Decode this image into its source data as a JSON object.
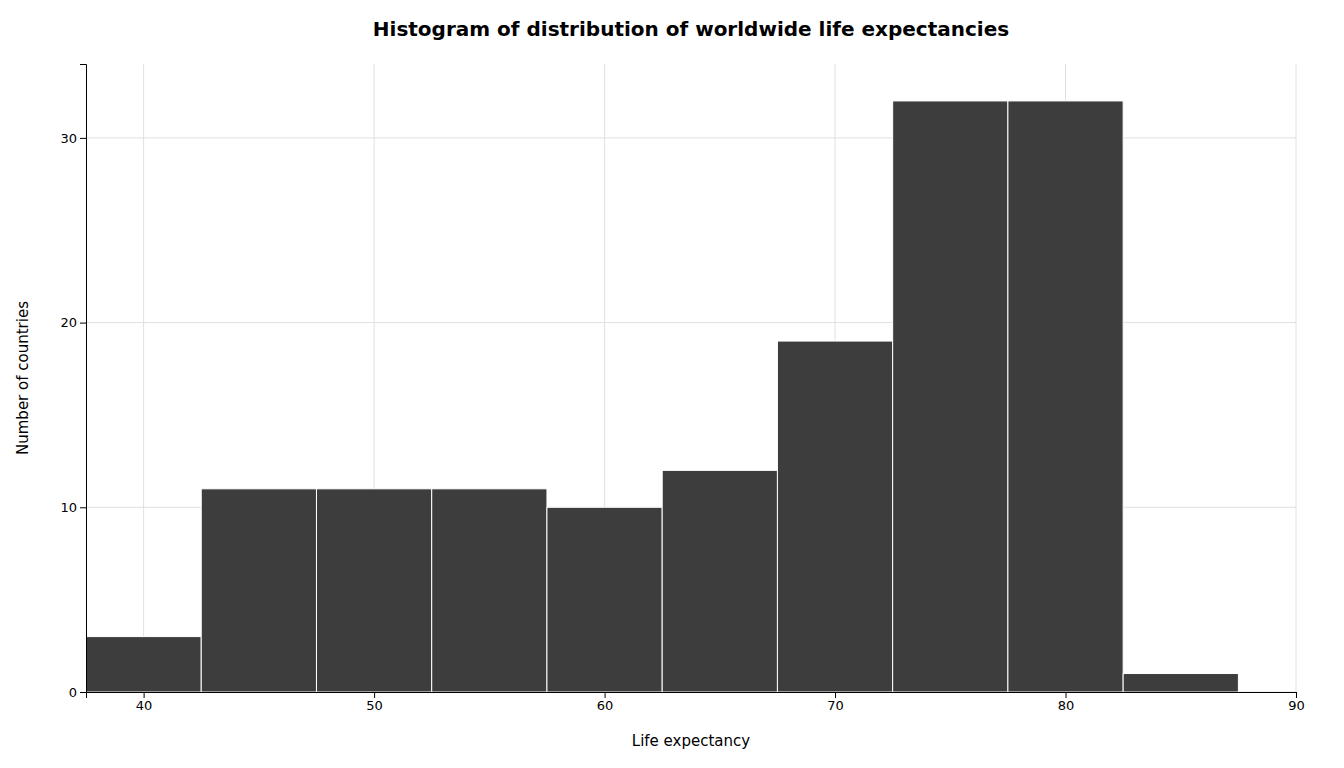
{
  "chart_data": {
    "type": "histogram",
    "title": "Histogram of distribution of worldwide life expectancies",
    "xlabel": "Life expectancy",
    "ylabel": "Number of countries",
    "bins": [
      37.5,
      42.5,
      47.5,
      52.5,
      57.5,
      62.5,
      67.5,
      72.5,
      77.5,
      82.5,
      87.5
    ],
    "values": [
      3,
      11,
      11,
      11,
      10,
      12,
      19,
      32,
      32,
      1
    ],
    "color": "#3d3d3d",
    "xlim": [
      37.5,
      90
    ],
    "ylim": [
      0,
      34
    ],
    "xticks": [
      40,
      50,
      60,
      70,
      80,
      90
    ],
    "yticks": [
      0,
      10,
      20,
      30
    ],
    "grid": true
  }
}
